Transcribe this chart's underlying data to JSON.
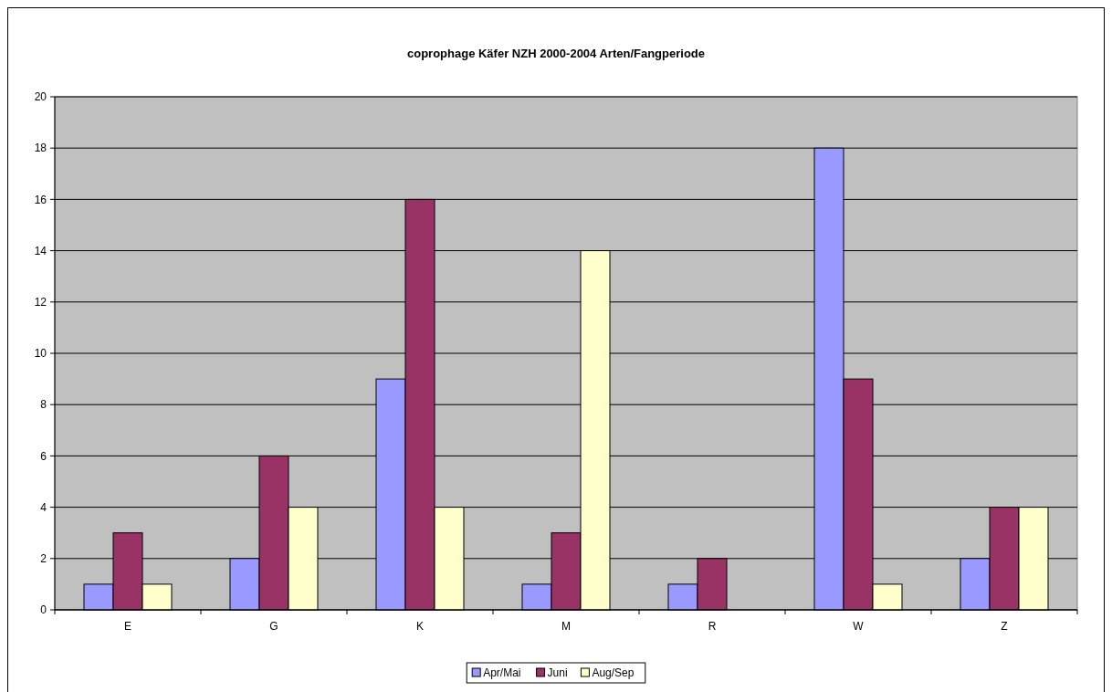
{
  "chart_data": {
    "type": "bar",
    "title": "coprophage Käfer NZH 2000-2004 Arten/Fangperiode",
    "categories": [
      "E",
      "G",
      "K",
      "M",
      "R",
      "W",
      "Z"
    ],
    "series": [
      {
        "name": "Apr/Mai",
        "color": "#9999ff",
        "values": [
          1,
          2,
          9,
          1,
          1,
          18,
          2
        ]
      },
      {
        "name": "Juni",
        "color": "#993366",
        "values": [
          3,
          6,
          16,
          3,
          2,
          9,
          4
        ]
      },
      {
        "name": "Aug/Sep",
        "color": "#ffffcc",
        "values": [
          1,
          4,
          4,
          14,
          0,
          1,
          4
        ]
      }
    ],
    "ylim": [
      0,
      20
    ],
    "yticks": [
      0,
      2,
      4,
      6,
      8,
      10,
      12,
      14,
      16,
      18,
      20
    ],
    "grid": "y",
    "legend": "bottom"
  }
}
